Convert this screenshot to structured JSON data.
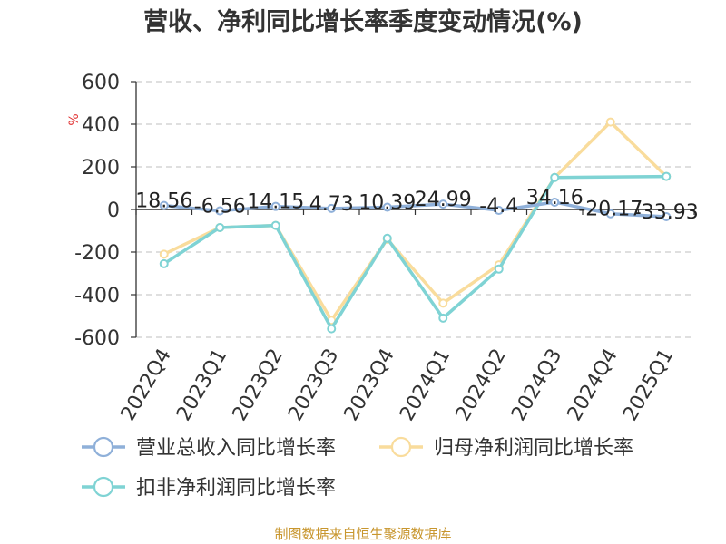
{
  "chart_data": {
    "type": "line",
    "title": "营收、净利同比增长率季度变动情况(%)",
    "ylabel": "%",
    "ylim": [
      -600,
      600
    ],
    "yticks": [
      600,
      400,
      200,
      0,
      -200,
      -400,
      -600
    ],
    "grid": true,
    "legend_position": "bottom-left",
    "categories": [
      "2022Q4",
      "2023Q1",
      "2023Q2",
      "2023Q3",
      "2023Q4",
      "2024Q1",
      "2024Q2",
      "2024Q3",
      "2024Q4",
      "2025Q1"
    ],
    "series": [
      {
        "name": "营业总收入同比增长率",
        "color": "#8fb0d9",
        "values": [
          18.56,
          -6.56,
          14.15,
          4.73,
          10.39,
          24.99,
          -4.4,
          34.16,
          -20.17,
          -33.93
        ],
        "data_labels": [
          "18.56",
          "-6.56",
          "14.15",
          "4.73",
          "10.39",
          "24.99",
          "-4.4",
          "34.16",
          "-20.17",
          "-33.93"
        ]
      },
      {
        "name": "归母净利润同比增长率",
        "color": "#f9dc9c",
        "values": [
          -210,
          -85,
          -75,
          -520,
          -140,
          -440,
          -260,
          150,
          410,
          155
        ]
      },
      {
        "name": "扣非净利润同比增长率",
        "color": "#7fd3d4",
        "values": [
          -255,
          -85,
          -75,
          -560,
          -135,
          -510,
          -280,
          150,
          null,
          155
        ]
      }
    ],
    "source": "制图数据来自恒生聚源数据库"
  }
}
